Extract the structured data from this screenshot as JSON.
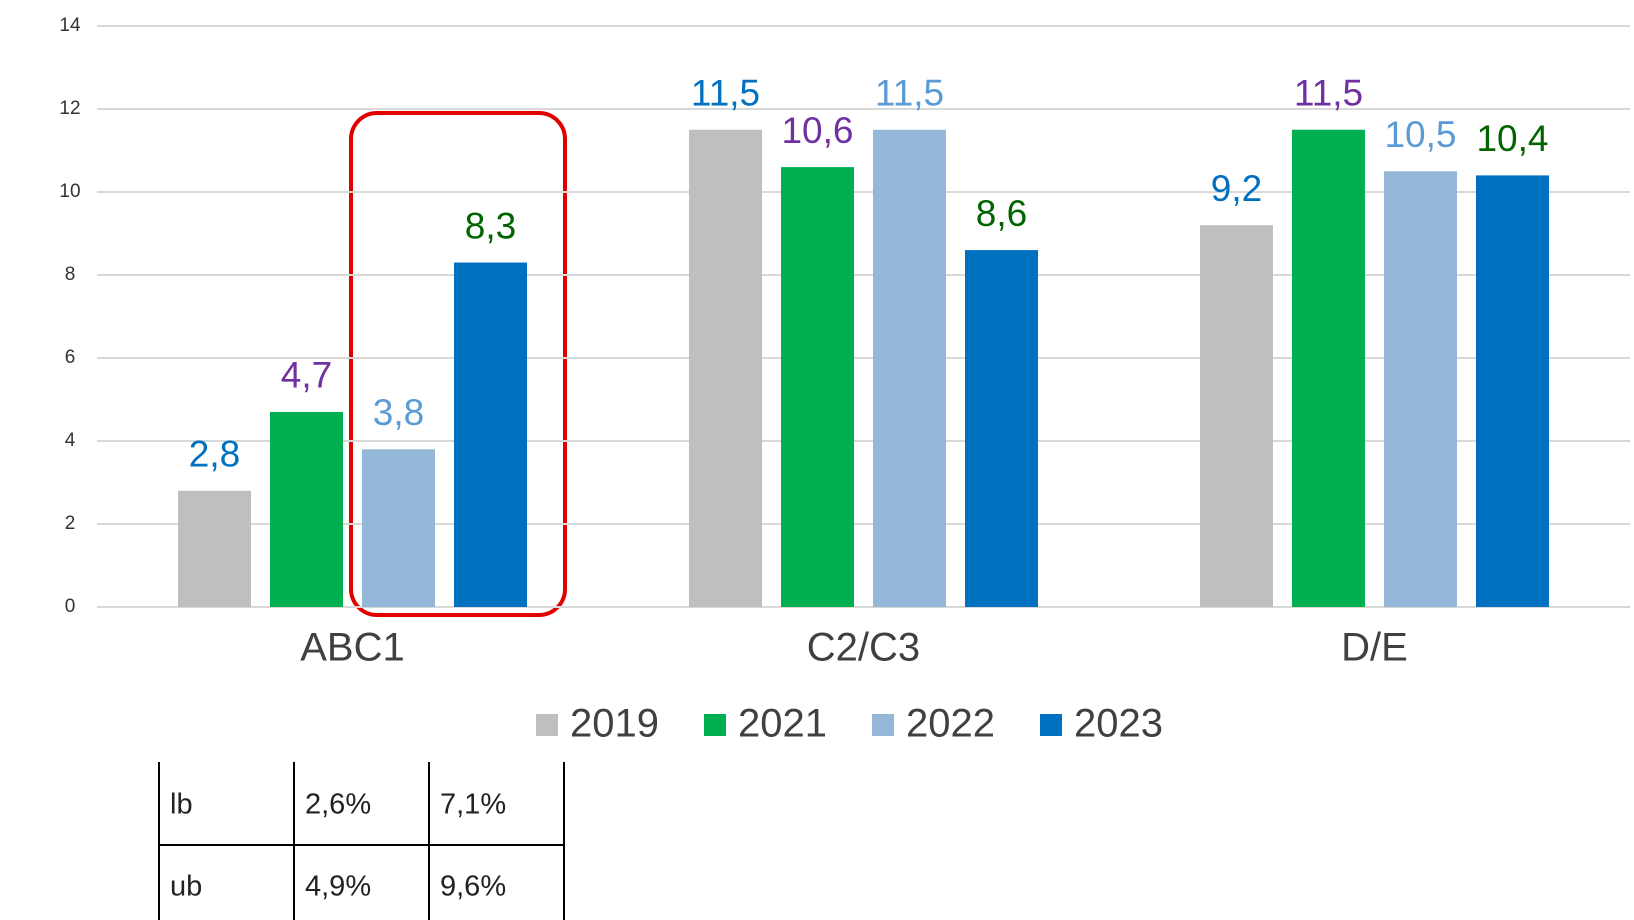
{
  "chart_data": {
    "type": "bar",
    "categories": [
      "ABC1",
      "C2/C3",
      "D/E"
    ],
    "series": [
      {
        "name": "2019",
        "color": "#bfbfbf",
        "label_color": "#0070c0",
        "values": [
          2.8,
          11.5,
          9.2
        ],
        "value_labels": [
          "2,8",
          "11,5",
          "9,2"
        ]
      },
      {
        "name": "2021",
        "color": "#00b050",
        "label_color": "#7030a0",
        "values": [
          4.7,
          10.6,
          11.5
        ],
        "value_labels": [
          "4,7",
          "10,6",
          "11,5"
        ]
      },
      {
        "name": "2022",
        "color": "#95b8d8",
        "label_color": "#5b9bd5",
        "values": [
          3.8,
          11.5,
          10.5
        ],
        "value_labels": [
          "3,8",
          "11,5",
          "10,5"
        ]
      },
      {
        "name": "2023",
        "color": "#0070c0",
        "label_color": "#006400",
        "values": [
          8.3,
          8.6,
          10.4
        ],
        "value_labels": [
          "8,3",
          "8,6",
          "10,4"
        ]
      }
    ],
    "ylim": [
      0,
      14
    ],
    "yticks": [
      0,
      2,
      4,
      6,
      8,
      10,
      12,
      14
    ],
    "grid": true,
    "legend": "bottom"
  },
  "table": {
    "rows": [
      [
        "lb",
        "2,6%",
        "7,1%"
      ],
      [
        "ub",
        "4,9%",
        "9,6%"
      ]
    ]
  }
}
